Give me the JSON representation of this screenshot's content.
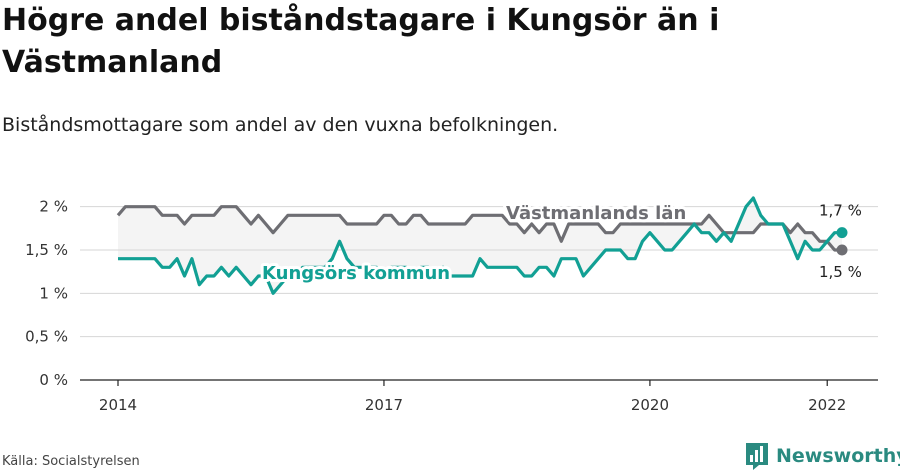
{
  "title": "Högre andel biståndstagare i Kungsör än i Västmanland",
  "subtitle": "Biståndsmottagare som andel av den vuxna befolkningen.",
  "source": "Källa: Socialstyrelsen",
  "brand": "Newsworthy",
  "colors": {
    "kommun": "#12a094",
    "lan": "#6e6e73",
    "band": "#f4f4f4",
    "grid": "#d6d6d6",
    "brand": "#2a8a80"
  },
  "chart_data": {
    "type": "line",
    "x_ticks": [
      "2014",
      "2017",
      "2020",
      "2022"
    ],
    "y_ticks": [
      "0 %",
      "0,5 %",
      "1 %",
      "1,5 %",
      "2 %"
    ],
    "ylim": [
      0,
      2.1
    ],
    "series": [
      {
        "name": "Västmanlands län",
        "end_label": "1,5 %",
        "points": [
          [
            "2014-01",
            1.9
          ],
          [
            "2014-02",
            2.0
          ],
          [
            "2014-03",
            2.0
          ],
          [
            "2014-04",
            2.0
          ],
          [
            "2014-05",
            2.0
          ],
          [
            "2014-06",
            2.0
          ],
          [
            "2014-07",
            1.9
          ],
          [
            "2014-08",
            1.9
          ],
          [
            "2014-09",
            1.9
          ],
          [
            "2014-10",
            1.8
          ],
          [
            "2014-11",
            1.9
          ],
          [
            "2014-12",
            1.9
          ],
          [
            "2015-01",
            1.9
          ],
          [
            "2015-02",
            1.9
          ],
          [
            "2015-03",
            2.0
          ],
          [
            "2015-04",
            2.0
          ],
          [
            "2015-05",
            2.0
          ],
          [
            "2015-06",
            1.9
          ],
          [
            "2015-07",
            1.8
          ],
          [
            "2015-08",
            1.9
          ],
          [
            "2015-09",
            1.8
          ],
          [
            "2015-10",
            1.7
          ],
          [
            "2015-11",
            1.8
          ],
          [
            "2015-12",
            1.9
          ],
          [
            "2016-01",
            1.9
          ],
          [
            "2016-02",
            1.9
          ],
          [
            "2016-03",
            1.9
          ],
          [
            "2016-04",
            1.9
          ],
          [
            "2016-05",
            1.9
          ],
          [
            "2016-06",
            1.9
          ],
          [
            "2016-07",
            1.9
          ],
          [
            "2016-08",
            1.8
          ],
          [
            "2016-09",
            1.8
          ],
          [
            "2016-10",
            1.8
          ],
          [
            "2016-11",
            1.8
          ],
          [
            "2016-12",
            1.8
          ],
          [
            "2017-01",
            1.9
          ],
          [
            "2017-02",
            1.9
          ],
          [
            "2017-03",
            1.8
          ],
          [
            "2017-04",
            1.8
          ],
          [
            "2017-05",
            1.9
          ],
          [
            "2017-06",
            1.9
          ],
          [
            "2017-07",
            1.8
          ],
          [
            "2017-08",
            1.8
          ],
          [
            "2017-09",
            1.8
          ],
          [
            "2017-10",
            1.8
          ],
          [
            "2017-11",
            1.8
          ],
          [
            "2017-12",
            1.8
          ],
          [
            "2018-01",
            1.9
          ],
          [
            "2018-02",
            1.9
          ],
          [
            "2018-03",
            1.9
          ],
          [
            "2018-04",
            1.9
          ],
          [
            "2018-05",
            1.9
          ],
          [
            "2018-06",
            1.8
          ],
          [
            "2018-07",
            1.8
          ],
          [
            "2018-08",
            1.7
          ],
          [
            "2018-09",
            1.8
          ],
          [
            "2018-10",
            1.7
          ],
          [
            "2018-11",
            1.8
          ],
          [
            "2018-12",
            1.8
          ],
          [
            "2019-01",
            1.6
          ],
          [
            "2019-02",
            1.8
          ],
          [
            "2019-03",
            1.8
          ],
          [
            "2019-04",
            1.8
          ],
          [
            "2019-05",
            1.8
          ],
          [
            "2019-06",
            1.8
          ],
          [
            "2019-07",
            1.7
          ],
          [
            "2019-08",
            1.7
          ],
          [
            "2019-09",
            1.8
          ],
          [
            "2019-10",
            1.8
          ],
          [
            "2019-11",
            1.8
          ],
          [
            "2019-12",
            1.8
          ],
          [
            "2020-01",
            1.8
          ],
          [
            "2020-02",
            1.8
          ],
          [
            "2020-03",
            1.8
          ],
          [
            "2020-04",
            1.8
          ],
          [
            "2020-05",
            1.8
          ],
          [
            "2020-06",
            1.8
          ],
          [
            "2020-07",
            1.8
          ],
          [
            "2020-08",
            1.8
          ],
          [
            "2020-09",
            1.9
          ],
          [
            "2020-10",
            1.8
          ],
          [
            "2020-11",
            1.7
          ],
          [
            "2020-12",
            1.7
          ],
          [
            "2021-01",
            1.7
          ],
          [
            "2021-02",
            1.7
          ],
          [
            "2021-03",
            1.7
          ],
          [
            "2021-04",
            1.8
          ],
          [
            "2021-05",
            1.8
          ],
          [
            "2021-06",
            1.8
          ],
          [
            "2021-07",
            1.8
          ],
          [
            "2021-08",
            1.7
          ],
          [
            "2021-09",
            1.8
          ],
          [
            "2021-10",
            1.7
          ],
          [
            "2021-11",
            1.7
          ],
          [
            "2021-12",
            1.6
          ],
          [
            "2022-01",
            1.6
          ],
          [
            "2022-02",
            1.5
          ],
          [
            "2022-03",
            1.5
          ]
        ]
      },
      {
        "name": "Kungsörs kommun",
        "end_label": "1,7 %",
        "points": [
          [
            "2014-01",
            1.4
          ],
          [
            "2014-02",
            1.4
          ],
          [
            "2014-03",
            1.4
          ],
          [
            "2014-04",
            1.4
          ],
          [
            "2014-05",
            1.4
          ],
          [
            "2014-06",
            1.4
          ],
          [
            "2014-07",
            1.3
          ],
          [
            "2014-08",
            1.3
          ],
          [
            "2014-09",
            1.4
          ],
          [
            "2014-10",
            1.2
          ],
          [
            "2014-11",
            1.4
          ],
          [
            "2014-12",
            1.1
          ],
          [
            "2015-01",
            1.2
          ],
          [
            "2015-02",
            1.2
          ],
          [
            "2015-03",
            1.3
          ],
          [
            "2015-04",
            1.2
          ],
          [
            "2015-05",
            1.3
          ],
          [
            "2015-06",
            1.2
          ],
          [
            "2015-07",
            1.1
          ],
          [
            "2015-08",
            1.2
          ],
          [
            "2015-09",
            1.2
          ],
          [
            "2015-10",
            1.0
          ],
          [
            "2015-11",
            1.1
          ],
          [
            "2015-12",
            1.2
          ],
          [
            "2016-01",
            1.2
          ],
          [
            "2016-02",
            1.3
          ],
          [
            "2016-03",
            1.3
          ],
          [
            "2016-04",
            1.3
          ],
          [
            "2016-05",
            1.3
          ],
          [
            "2016-06",
            1.4
          ],
          [
            "2016-07",
            1.6
          ],
          [
            "2016-08",
            1.4
          ],
          [
            "2016-09",
            1.3
          ],
          [
            "2016-10",
            1.3
          ],
          [
            "2016-11",
            1.3
          ],
          [
            "2016-12",
            1.3
          ],
          [
            "2017-01",
            1.2
          ],
          [
            "2017-02",
            1.3
          ],
          [
            "2017-03",
            1.3
          ],
          [
            "2017-04",
            1.3
          ],
          [
            "2017-05",
            1.2
          ],
          [
            "2017-06",
            1.3
          ],
          [
            "2017-07",
            1.3
          ],
          [
            "2017-08",
            1.2
          ],
          [
            "2017-09",
            1.3
          ],
          [
            "2017-10",
            1.2
          ],
          [
            "2017-11",
            1.2
          ],
          [
            "2017-12",
            1.2
          ],
          [
            "2018-01",
            1.2
          ],
          [
            "2018-02",
            1.4
          ],
          [
            "2018-03",
            1.3
          ],
          [
            "2018-04",
            1.3
          ],
          [
            "2018-05",
            1.3
          ],
          [
            "2018-06",
            1.3
          ],
          [
            "2018-07",
            1.3
          ],
          [
            "2018-08",
            1.2
          ],
          [
            "2018-09",
            1.2
          ],
          [
            "2018-10",
            1.3
          ],
          [
            "2018-11",
            1.3
          ],
          [
            "2018-12",
            1.2
          ],
          [
            "2019-01",
            1.4
          ],
          [
            "2019-02",
            1.4
          ],
          [
            "2019-03",
            1.4
          ],
          [
            "2019-04",
            1.2
          ],
          [
            "2019-05",
            1.3
          ],
          [
            "2019-06",
            1.4
          ],
          [
            "2019-07",
            1.5
          ],
          [
            "2019-08",
            1.5
          ],
          [
            "2019-09",
            1.5
          ],
          [
            "2019-10",
            1.4
          ],
          [
            "2019-11",
            1.4
          ],
          [
            "2019-12",
            1.6
          ],
          [
            "2020-01",
            1.7
          ],
          [
            "2020-02",
            1.6
          ],
          [
            "2020-03",
            1.5
          ],
          [
            "2020-04",
            1.5
          ],
          [
            "2020-05",
            1.6
          ],
          [
            "2020-06",
            1.7
          ],
          [
            "2020-07",
            1.8
          ],
          [
            "2020-08",
            1.7
          ],
          [
            "2020-09",
            1.7
          ],
          [
            "2020-10",
            1.6
          ],
          [
            "2020-11",
            1.7
          ],
          [
            "2020-12",
            1.6
          ],
          [
            "2021-01",
            1.8
          ],
          [
            "2021-02",
            2.0
          ],
          [
            "2021-03",
            2.1
          ],
          [
            "2021-04",
            1.9
          ],
          [
            "2021-05",
            1.8
          ],
          [
            "2021-06",
            1.8
          ],
          [
            "2021-07",
            1.8
          ],
          [
            "2021-08",
            1.6
          ],
          [
            "2021-09",
            1.4
          ],
          [
            "2021-10",
            1.6
          ],
          [
            "2021-11",
            1.5
          ],
          [
            "2021-12",
            1.5
          ],
          [
            "2022-01",
            1.6
          ],
          [
            "2022-02",
            1.7
          ],
          [
            "2022-03",
            1.7
          ]
        ]
      }
    ]
  }
}
